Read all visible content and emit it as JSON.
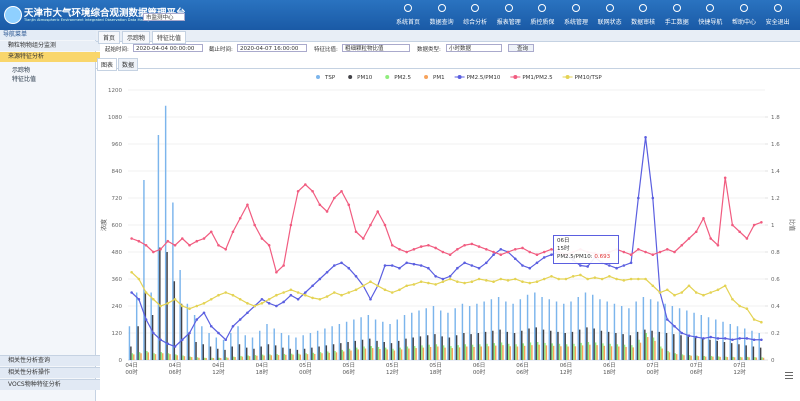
{
  "header": {
    "title": "天津市大气环境综合观测数据管理平台",
    "subtitle": "Tianjin Atmospheric Environment Integrated Observation Data Management Platform",
    "station": "市监测中心",
    "nav": [
      "系统首页",
      "数据查询",
      "综合分析",
      "报表管理",
      "质控质保",
      "系统管理",
      "联网状态",
      "数据审核",
      "手工数据",
      "快捷导航",
      "帮助中心",
      "安全退出"
    ]
  },
  "sidebar": {
    "title": "导航菜单",
    "groups": [
      "颗粒物物组分监测",
      "来源特征分析"
    ],
    "items": [
      "示踪物",
      "特征比值"
    ],
    "bottom": [
      "相关性分析查询",
      "相关性分析操作",
      "VOCS物种特征分析"
    ]
  },
  "tabs": [
    "首页",
    "示踪物",
    "特征比值"
  ],
  "toolbar": {
    "start_label": "起始时间:",
    "start": "2020-04-04 00:00:00",
    "end_label": "截止时间:",
    "end": "2020-04-07 16:00:00",
    "ratio_label": "特征比值:",
    "ratio": "粗细颗粒物比值",
    "type_label": "数据类型:",
    "type": "小时数据",
    "button": "查询"
  },
  "subtabs": [
    "图表",
    "数据"
  ],
  "chart_data": {
    "type": "bar",
    "ylabel": "浓度",
    "y2label": "比值",
    "categories": [
      "04日\n00时",
      null,
      null,
      null,
      null,
      null,
      "04日\n06时",
      null,
      null,
      null,
      null,
      null,
      "04日\n12时",
      null,
      null,
      null,
      null,
      null,
      "04日\n18时",
      null,
      null,
      null,
      null,
      null,
      "05日\n00时",
      null,
      null,
      null,
      null,
      null,
      "05日\n06时",
      null,
      null,
      null,
      null,
      null,
      "05日\n12时",
      null,
      null,
      null,
      null,
      null,
      "05日\n18时",
      null,
      null,
      null,
      null,
      null,
      "06日\n00时",
      null,
      null,
      null,
      null,
      null,
      "06日\n06时",
      null,
      null,
      null,
      null,
      null,
      "06日\n12时",
      null,
      null,
      null,
      null,
      null,
      "06日\n18时",
      null,
      null,
      null,
      null,
      null,
      "07日\n00时",
      null,
      null,
      null,
      null,
      null,
      "07日\n06时",
      null,
      null,
      null,
      null,
      null,
      "07日\n12时",
      null,
      null,
      null
    ],
    "series": [
      {
        "name": "TSP",
        "type": "bar",
        "color": "#7cb5ec",
        "values": [
          150,
          300,
          800,
          300,
          1000,
          1130,
          700,
          400,
          250,
          200,
          150,
          120,
          100,
          90,
          120,
          150,
          110,
          100,
          130,
          160,
          140,
          120,
          110,
          100,
          110,
          120,
          130,
          140,
          150,
          160,
          170,
          180,
          190,
          200,
          180,
          170,
          160,
          180,
          200,
          210,
          220,
          230,
          240,
          220,
          210,
          230,
          250,
          240,
          250,
          260,
          270,
          280,
          260,
          250,
          270,
          290,
          300,
          280,
          270,
          260,
          250,
          260,
          280,
          300,
          290,
          270,
          260,
          250,
          240,
          230,
          260,
          280,
          270,
          260,
          250,
          240,
          230,
          220,
          210,
          200,
          190,
          180,
          170,
          160,
          150,
          140,
          130,
          120
        ]
      },
      {
        "name": "PM10",
        "type": "bar",
        "color": "#434348",
        "values": [
          60,
          150,
          300,
          200,
          500,
          480,
          350,
          250,
          120,
          80,
          70,
          60,
          50,
          45,
          60,
          70,
          55,
          50,
          60,
          70,
          65,
          55,
          50,
          45,
          50,
          55,
          60,
          65,
          70,
          75,
          80,
          85,
          90,
          95,
          85,
          80,
          75,
          85,
          95,
          100,
          105,
          110,
          115,
          105,
          100,
          110,
          120,
          115,
          120,
          125,
          130,
          135,
          125,
          120,
          130,
          140,
          145,
          135,
          130,
          125,
          120,
          125,
          135,
          145,
          140,
          130,
          125,
          120,
          115,
          110,
          125,
          135,
          130,
          125,
          120,
          115,
          110,
          105,
          100,
          95,
          90,
          85,
          80,
          75,
          70,
          65,
          60,
          55
        ]
      },
      {
        "name": "PM2.5",
        "type": "bar",
        "color": "#90ed7d",
        "values": [
          30,
          35,
          40,
          30,
          35,
          30,
          25,
          20,
          15,
          12,
          10,
          10,
          10,
          12,
          15,
          18,
          20,
          22,
          24,
          25,
          26,
          27,
          28,
          28,
          30,
          32,
          35,
          38,
          40,
          45,
          50,
          55,
          60,
          62,
          58,
          55,
          50,
          55,
          60,
          62,
          65,
          68,
          70,
          65,
          62,
          66,
          70,
          68,
          70,
          72,
          75,
          78,
          72,
          70,
          74,
          78,
          80,
          76,
          74,
          72,
          70,
          72,
          76,
          80,
          78,
          74,
          72,
          70,
          68,
          66,
          90,
          120,
          100,
          60,
          40,
          30,
          25,
          22,
          20,
          18,
          18,
          16,
          15,
          14,
          14,
          14,
          13,
          12
        ]
      },
      {
        "name": "PM1",
        "type": "bar",
        "color": "#f7a35c",
        "values": [
          25,
          30,
          34,
          26,
          30,
          26,
          21,
          17,
          13,
          10,
          9,
          9,
          9,
          10,
          13,
          15,
          17,
          19,
          20,
          21,
          22,
          23,
          24,
          24,
          26,
          27,
          30,
          32,
          34,
          38,
          42,
          47,
          51,
          53,
          49,
          47,
          42,
          47,
          51,
          53,
          55,
          58,
          60,
          55,
          53,
          56,
          60,
          58,
          60,
          61,
          64,
          66,
          61,
          60,
          63,
          66,
          68,
          65,
          63,
          61,
          60,
          61,
          65,
          68,
          66,
          63,
          61,
          60,
          58,
          56,
          77,
          102,
          85,
          51,
          34,
          26,
          21,
          19,
          17,
          15,
          15,
          14,
          13,
          12,
          12,
          12,
          11,
          10
        ]
      },
      {
        "name": "PM2.5/PM10",
        "type": "line",
        "axis": "y2",
        "color": "#5b5fe0",
        "values": [
          0.5,
          0.45,
          0.3,
          0.2,
          0.15,
          0.12,
          0.1,
          0.15,
          0.2,
          0.3,
          0.35,
          0.25,
          0.2,
          0.15,
          0.25,
          0.3,
          0.35,
          0.4,
          0.45,
          0.42,
          0.4,
          0.43,
          0.48,
          0.45,
          0.5,
          0.55,
          0.6,
          0.65,
          0.7,
          0.72,
          0.68,
          0.62,
          0.55,
          0.45,
          0.55,
          0.7,
          0.7,
          0.68,
          0.72,
          0.71,
          0.7,
          0.68,
          0.62,
          0.6,
          0.62,
          0.68,
          0.72,
          0.7,
          0.68,
          0.72,
          0.78,
          0.82,
          0.8,
          0.75,
          0.7,
          0.68,
          0.72,
          0.76,
          0.78,
          0.8,
          0.78,
          0.74,
          0.7,
          0.693,
          0.76,
          0.72,
          0.7,
          0.68,
          0.7,
          0.72,
          1.2,
          1.65,
          1.2,
          0.5,
          0.3,
          0.25,
          0.2,
          0.18,
          0.17,
          0.16,
          0.17,
          0.16,
          0.16,
          0.15,
          0.16,
          0.16,
          0.15,
          0.15
        ]
      },
      {
        "name": "PM1/PM2.5",
        "type": "line",
        "axis": "y2",
        "color": "#f15c80",
        "values": [
          0.9,
          0.88,
          0.85,
          0.8,
          0.82,
          0.88,
          0.85,
          0.9,
          0.85,
          0.88,
          0.9,
          0.95,
          0.85,
          0.82,
          0.95,
          1.05,
          1.15,
          1.0,
          0.9,
          0.85,
          0.65,
          0.7,
          1.0,
          1.25,
          1.3,
          1.25,
          1.15,
          1.1,
          1.2,
          1.25,
          1.15,
          0.95,
          0.9,
          1.0,
          1.1,
          1.0,
          0.85,
          0.82,
          0.8,
          0.82,
          0.84,
          0.85,
          0.83,
          0.8,
          0.78,
          0.82,
          0.85,
          0.86,
          0.84,
          0.82,
          0.8,
          0.78,
          0.8,
          0.82,
          0.83,
          0.8,
          0.78,
          0.8,
          0.82,
          0.8,
          0.78,
          0.8,
          0.82,
          0.8,
          0.79,
          0.78,
          0.8,
          0.82,
          0.8,
          0.78,
          0.82,
          0.8,
          0.78,
          0.8,
          0.82,
          0.8,
          0.85,
          0.9,
          0.95,
          1.05,
          0.9,
          0.85,
          1.35,
          1.0,
          0.95,
          0.9,
          1.0,
          1.02
        ]
      },
      {
        "name": "PM10/TSP",
        "type": "line",
        "axis": "y2",
        "color": "#e4d354",
        "values": [
          0.65,
          0.6,
          0.5,
          0.45,
          0.4,
          0.42,
          0.45,
          0.4,
          0.38,
          0.4,
          0.42,
          0.45,
          0.48,
          0.5,
          0.48,
          0.45,
          0.42,
          0.4,
          0.42,
          0.45,
          0.48,
          0.5,
          0.52,
          0.5,
          0.48,
          0.46,
          0.45,
          0.47,
          0.5,
          0.48,
          0.5,
          0.52,
          0.55,
          0.58,
          0.55,
          0.52,
          0.5,
          0.52,
          0.55,
          0.56,
          0.58,
          0.57,
          0.56,
          0.58,
          0.6,
          0.58,
          0.57,
          0.58,
          0.6,
          0.59,
          0.58,
          0.6,
          0.59,
          0.6,
          0.58,
          0.57,
          0.58,
          0.6,
          0.62,
          0.6,
          0.6,
          0.62,
          0.63,
          0.6,
          0.61,
          0.6,
          0.62,
          0.6,
          0.59,
          0.6,
          0.6,
          0.6,
          0.55,
          0.5,
          0.52,
          0.48,
          0.5,
          0.55,
          0.5,
          0.48,
          0.5,
          0.52,
          0.55,
          0.45,
          0.4,
          0.38,
          0.3,
          0.28
        ]
      }
    ],
    "ylim": [
      0,
      1200
    ],
    "yticks": [
      0,
      120,
      240,
      360,
      480,
      600,
      720,
      840,
      960,
      1080,
      1200
    ],
    "y2lim": [
      0,
      2
    ],
    "y2ticks": [
      0,
      0.2,
      0.4,
      0.6,
      0.8,
      1,
      1.2,
      1.4,
      1.6,
      1.8
    ],
    "grid": true,
    "legend": "top",
    "tooltip": {
      "day": "06日",
      "hour": "15时",
      "label": "PM2.5/PM10:"
    }
  }
}
